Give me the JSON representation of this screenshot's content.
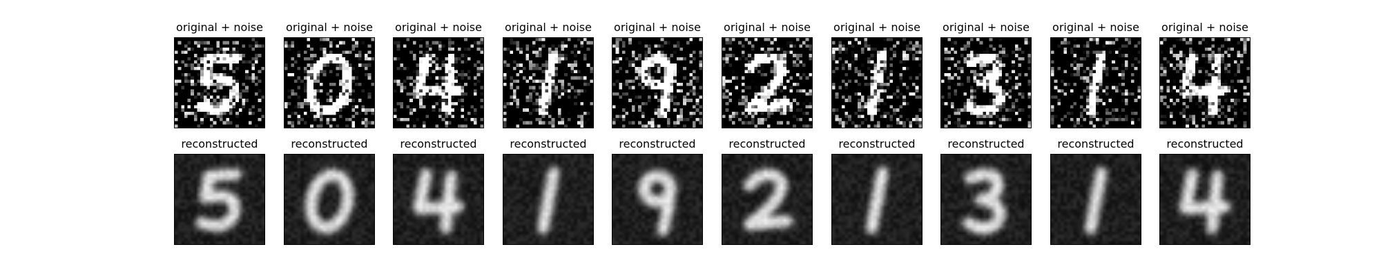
{
  "figure": {
    "rows": [
      {
        "title": "original + noise",
        "kind": "noisy",
        "noise_level": 0.3
      },
      {
        "title": "reconstructed",
        "kind": "reconstructed",
        "noise_level": 0.06
      }
    ],
    "digits": [
      "5",
      "0",
      "4",
      "1",
      "9",
      "2",
      "1",
      "3",
      "1",
      "4"
    ],
    "colormap": "gray"
  }
}
